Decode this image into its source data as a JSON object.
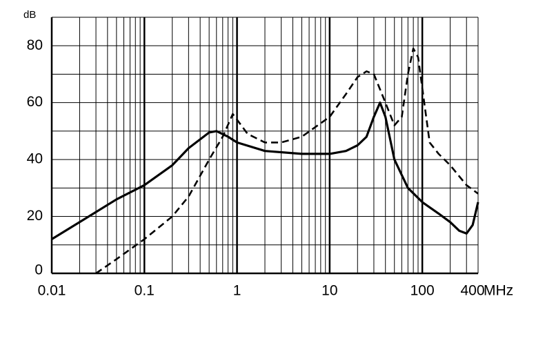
{
  "chart_data": {
    "type": "line",
    "log_x": true,
    "grid": true,
    "x_label": "MHz",
    "y_label": "dB",
    "xlim": [
      0.01,
      400
    ],
    "ylim": [
      0,
      90
    ],
    "xticks": [
      0.01,
      0.1,
      1,
      10,
      100,
      400
    ],
    "xminor": [
      0.02,
      0.03,
      0.04,
      0.05,
      0.06,
      0.07,
      0.08,
      0.09,
      0.2,
      0.3,
      0.4,
      0.5,
      0.6,
      0.7,
      0.8,
      0.9,
      2,
      3,
      4,
      5,
      6,
      7,
      8,
      9,
      20,
      30,
      40,
      50,
      60,
      70,
      80,
      90,
      200,
      300
    ],
    "yticks": [
      0,
      20,
      40,
      60,
      80
    ],
    "yminor": [
      10,
      30,
      50,
      70,
      90
    ],
    "series": [
      {
        "color": "#000000",
        "style": "solid",
        "x": [
          0.01,
          0.02,
          0.05,
          0.1,
          0.2,
          0.3,
          0.5,
          0.6,
          0.8,
          1,
          2,
          5,
          10,
          15,
          20,
          25,
          30,
          35,
          40,
          50,
          70,
          100,
          150,
          200,
          250,
          300,
          350,
          400
        ],
        "values": [
          12,
          18,
          26,
          31,
          38,
          44,
          49.5,
          50,
          48,
          46,
          43,
          42,
          42,
          43,
          45,
          48,
          55,
          60,
          55,
          40,
          30,
          25,
          21,
          18,
          15,
          14,
          17,
          25
        ]
      },
      {
        "color": "#000000",
        "style": "dashed",
        "x": [
          0.03,
          0.05,
          0.1,
          0.2,
          0.3,
          0.5,
          0.7,
          0.9,
          1,
          1.3,
          2,
          3,
          5,
          10,
          15,
          20,
          25,
          30,
          40,
          50,
          60,
          70,
          80,
          90,
          100,
          120,
          150,
          200,
          300,
          400
        ],
        "values": [
          0,
          5,
          12,
          20,
          27,
          40,
          48,
          56,
          54,
          49,
          46,
          46,
          48,
          55,
          63,
          69,
          71,
          70,
          60,
          52,
          55,
          70,
          79,
          76,
          65,
          46,
          42,
          38,
          31,
          28
        ]
      }
    ]
  }
}
